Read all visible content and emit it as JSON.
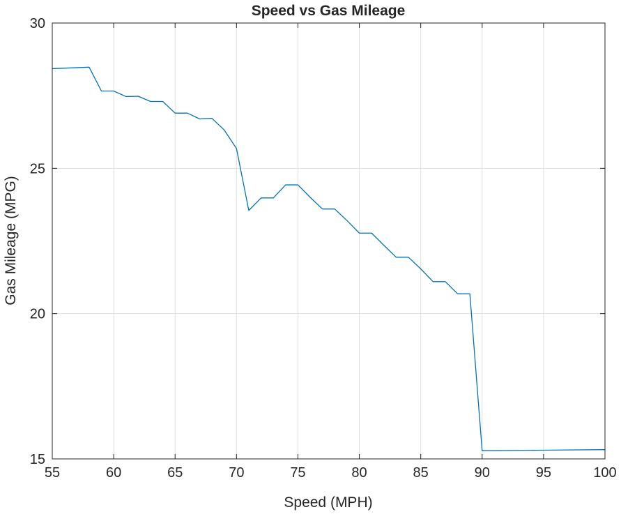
{
  "chart_data": {
    "type": "line",
    "title": "Speed vs Gas Mileage",
    "xlabel": "Speed (MPH)",
    "ylabel": "Gas Mileage (MPG)",
    "xlim": [
      55,
      100
    ],
    "ylim": [
      15,
      30
    ],
    "xticks": [
      55,
      60,
      65,
      70,
      75,
      80,
      85,
      90,
      95,
      100
    ],
    "yticks": [
      15,
      20,
      25,
      30
    ],
    "grid": true,
    "line_color": "#0072BD",
    "series": [
      {
        "x": [
          55,
          58,
          59,
          60,
          61,
          62,
          63,
          64,
          65,
          66,
          67,
          68,
          69,
          70,
          71,
          72,
          73,
          74,
          75,
          76,
          77,
          78,
          79,
          80,
          81,
          82,
          83,
          84,
          85,
          86,
          87,
          88,
          89,
          90,
          95,
          100
        ],
        "y": [
          28.43,
          28.48,
          27.66,
          27.66,
          27.47,
          27.48,
          27.3,
          27.3,
          26.9,
          26.9,
          26.7,
          26.72,
          26.32,
          25.68,
          23.55,
          23.98,
          23.98,
          24.43,
          24.43,
          24.0,
          23.6,
          23.6,
          23.2,
          22.77,
          22.77,
          22.35,
          21.94,
          21.94,
          21.54,
          21.1,
          21.1,
          20.68,
          20.68,
          15.28,
          15.3,
          15.32
        ]
      }
    ]
  }
}
